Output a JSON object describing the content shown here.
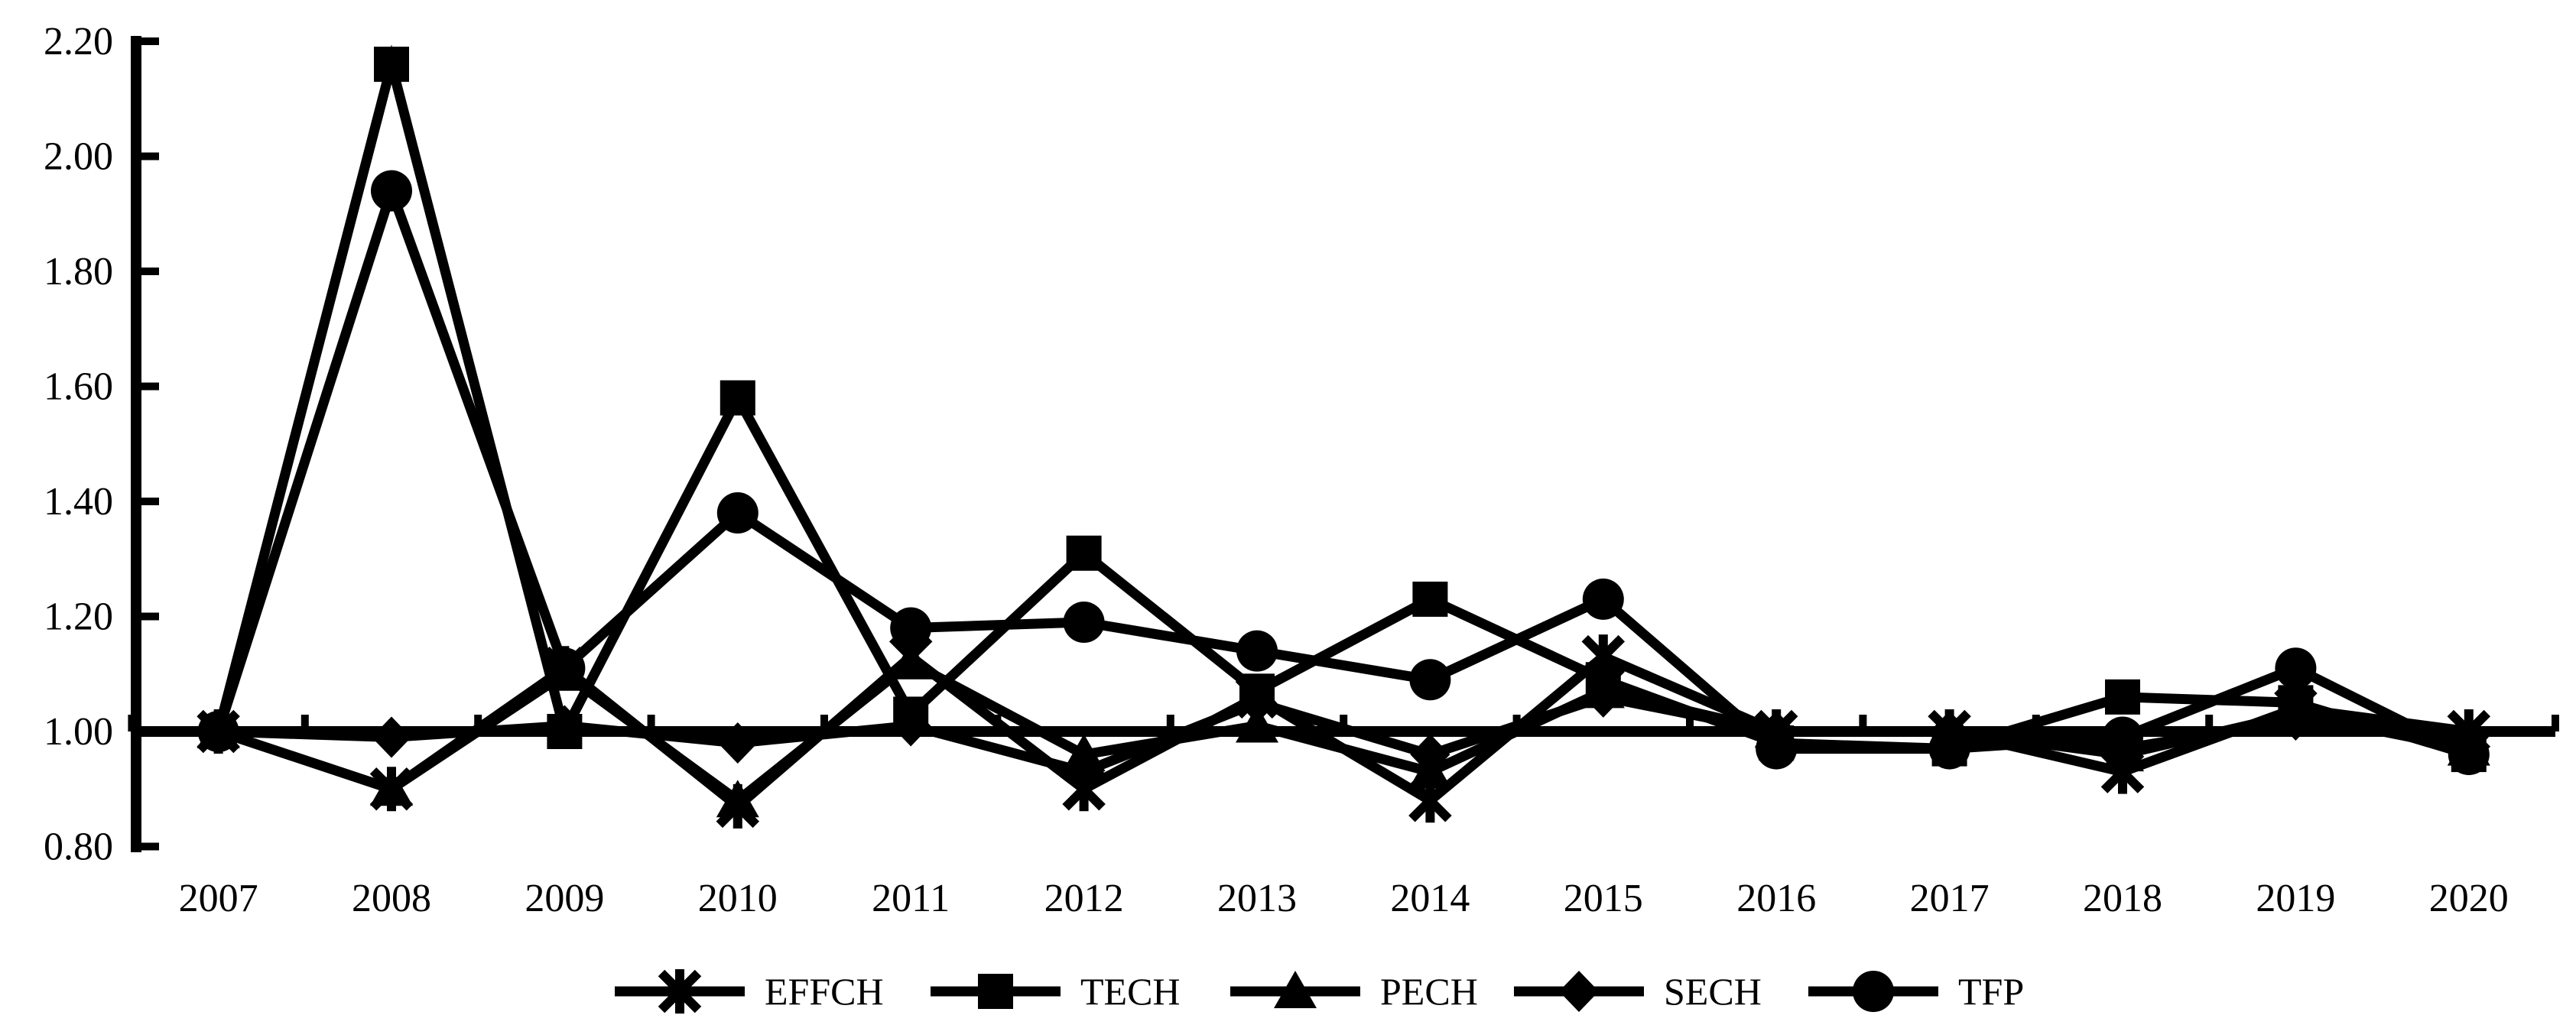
{
  "chart_data": {
    "type": "line",
    "title": "",
    "xlabel": "",
    "ylabel": "",
    "categories": [
      "2007",
      "2008",
      "2009",
      "2010",
      "2011",
      "2012",
      "2013",
      "2014",
      "2015",
      "2016",
      "2017",
      "2018",
      "2019",
      "2020"
    ],
    "series": [
      {
        "name": "EFFCH",
        "marker": "star",
        "values": [
          1.0,
          0.9,
          1.11,
          0.87,
          1.13,
          0.9,
          1.06,
          0.88,
          1.13,
          1.0,
          1.0,
          0.93,
          1.04,
          1.0
        ]
      },
      {
        "name": "TECH",
        "marker": "square",
        "values": [
          1.0,
          2.16,
          1.0,
          1.58,
          1.03,
          1.31,
          1.07,
          1.23,
          1.09,
          0.98,
          0.97,
          1.06,
          1.05,
          0.96
        ]
      },
      {
        "name": "PECH",
        "marker": "triangle",
        "values": [
          1.0,
          0.9,
          1.1,
          0.88,
          1.12,
          0.96,
          1.01,
          0.93,
          1.07,
          1.0,
          1.0,
          0.96,
          1.03,
          0.97
        ]
      },
      {
        "name": "SECH",
        "marker": "diamond",
        "values": [
          1.0,
          0.99,
          1.01,
          0.98,
          1.01,
          0.93,
          1.05,
          0.96,
          1.06,
          1.0,
          1.0,
          0.97,
          1.02,
          0.99
        ]
      },
      {
        "name": "TFP",
        "marker": "circle",
        "values": [
          1.0,
          1.94,
          1.11,
          1.38,
          1.18,
          1.19,
          1.14,
          1.09,
          1.23,
          0.97,
          0.97,
          0.99,
          1.11,
          0.96
        ]
      }
    ],
    "y_tick_labels": [
      "2.20",
      "2.00",
      "1.80",
      "1.60",
      "1.40",
      "1.20",
      "1.00",
      "0.80"
    ],
    "ylim": [
      0.8,
      2.2
    ],
    "y_step": 0.2,
    "baseline_value": 1.0,
    "grid": false,
    "legend_position": "bottom",
    "legend_labels": [
      "EFFCH",
      "TECH",
      "PECH",
      "SECH",
      "TFP"
    ],
    "line_color": "#000000",
    "background_color": "#ffffff"
  }
}
